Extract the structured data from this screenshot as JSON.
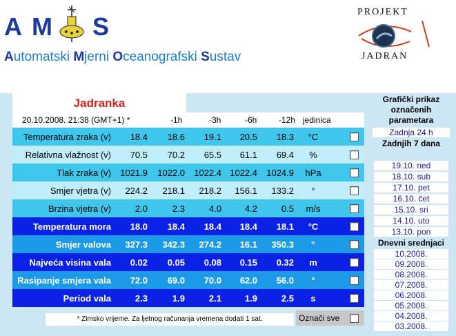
{
  "header": {
    "logo_letters": [
      "A",
      "M",
      "S"
    ],
    "subtitle_parts": [
      {
        "cap": "A",
        "rest": "utomatski "
      },
      {
        "cap": "M",
        "rest": "jerni "
      },
      {
        "cap": "O",
        "rest": "ceanografski "
      },
      {
        "cap": "S",
        "rest": "ustav"
      }
    ],
    "projekt_top": "PROJEKT",
    "projekt_bottom": "JADRAN"
  },
  "station": {
    "name": "Jadranka",
    "datetime": "20.10.2008. 21:38 (GMT+1) *",
    "columns": [
      "-1h",
      "-3h",
      "-6h",
      "-12h",
      "jedinica"
    ]
  },
  "rows": [
    {
      "label": "Temperatura zraka (v)",
      "now": "18.4",
      "h1": "18.6",
      "h3": "19.1",
      "h6": "20.5",
      "h12": "18.3",
      "unit": "°C"
    },
    {
      "label": "Relativna vlažnost (v)",
      "now": "70.5",
      "h1": "70.2",
      "h3": "65.5",
      "h6": "61.1",
      "h12": "69.4",
      "unit": "%"
    },
    {
      "label": "Tlak zraka (v)",
      "now": "1021.9",
      "h1": "1022.0",
      "h3": "1022.4",
      "h6": "1022.4",
      "h12": "1024.9",
      "unit": "hPa"
    },
    {
      "label": "Smjer vjetra (v)",
      "now": "224.2",
      "h1": "218.1",
      "h3": "218.2",
      "h6": "156.1",
      "h12": "133.2",
      "unit": "°"
    },
    {
      "label": "Brzina vjetra (v)",
      "now": "2.0",
      "h1": "2.3",
      "h3": "4.0",
      "h6": "4.2",
      "h12": "0.5",
      "unit": "m/s"
    },
    {
      "label": "Temperatura mora",
      "now": "18.0",
      "h1": "18.4",
      "h3": "18.4",
      "h6": "18.4",
      "h12": "18.1",
      "unit": "°C"
    },
    {
      "label": "Smjer valova",
      "now": "327.3",
      "h1": "342.3",
      "h3": "274.2",
      "h6": "16.1",
      "h12": "350.3",
      "unit": "°"
    },
    {
      "label": "Najveća visina vala",
      "now": "0.02",
      "h1": "0.05",
      "h3": "0.08",
      "h6": "0.15",
      "h12": "0.32",
      "unit": "m"
    },
    {
      "label": "Rasipanje smjera vala",
      "now": "72.0",
      "h1": "69.0",
      "h3": "70.0",
      "h6": "62.0",
      "h12": "56.0",
      "unit": "°"
    },
    {
      "label": "Period vala",
      "now": "2.3",
      "h1": "1.9",
      "h3": "2.1",
      "h6": "1.9",
      "h12": "2.5",
      "unit": "s"
    }
  ],
  "footer": {
    "note": "* Zimsko vrijeme. Za ljetnog računanja vremena dodati 1 sat.",
    "select_all": "Označi sve"
  },
  "sidebar": {
    "title": "Grafički prikaz označenih parametara",
    "last24": "Zadnja 24 h",
    "last7_header": "Zadnjih 7 dana",
    "days": [
      "19.10. ned",
      "18.10. sub",
      "17.10. pet",
      "16.10. čet",
      "15.10. sri",
      "14.10. uto",
      "13.10. pon"
    ],
    "monthly_header": "Dnevni srednjaci",
    "months": [
      "10.2008.",
      "09.2008.",
      "08.2008.",
      "07.2008.",
      "06.2008.",
      "05.2008.",
      "04.2008.",
      "03.2008."
    ]
  },
  "colors": {
    "light_rows": [
      "#3ec6ec",
      "#bfeefa",
      "#3ec6ec",
      "#bfeefa",
      "#3ec6ec"
    ],
    "dark_rows": [
      "#0b22e6",
      "#1c9ae8",
      "#0b22e6",
      "#1c9ae8",
      "#0b22e6"
    ],
    "title_red": "#d8201a"
  }
}
